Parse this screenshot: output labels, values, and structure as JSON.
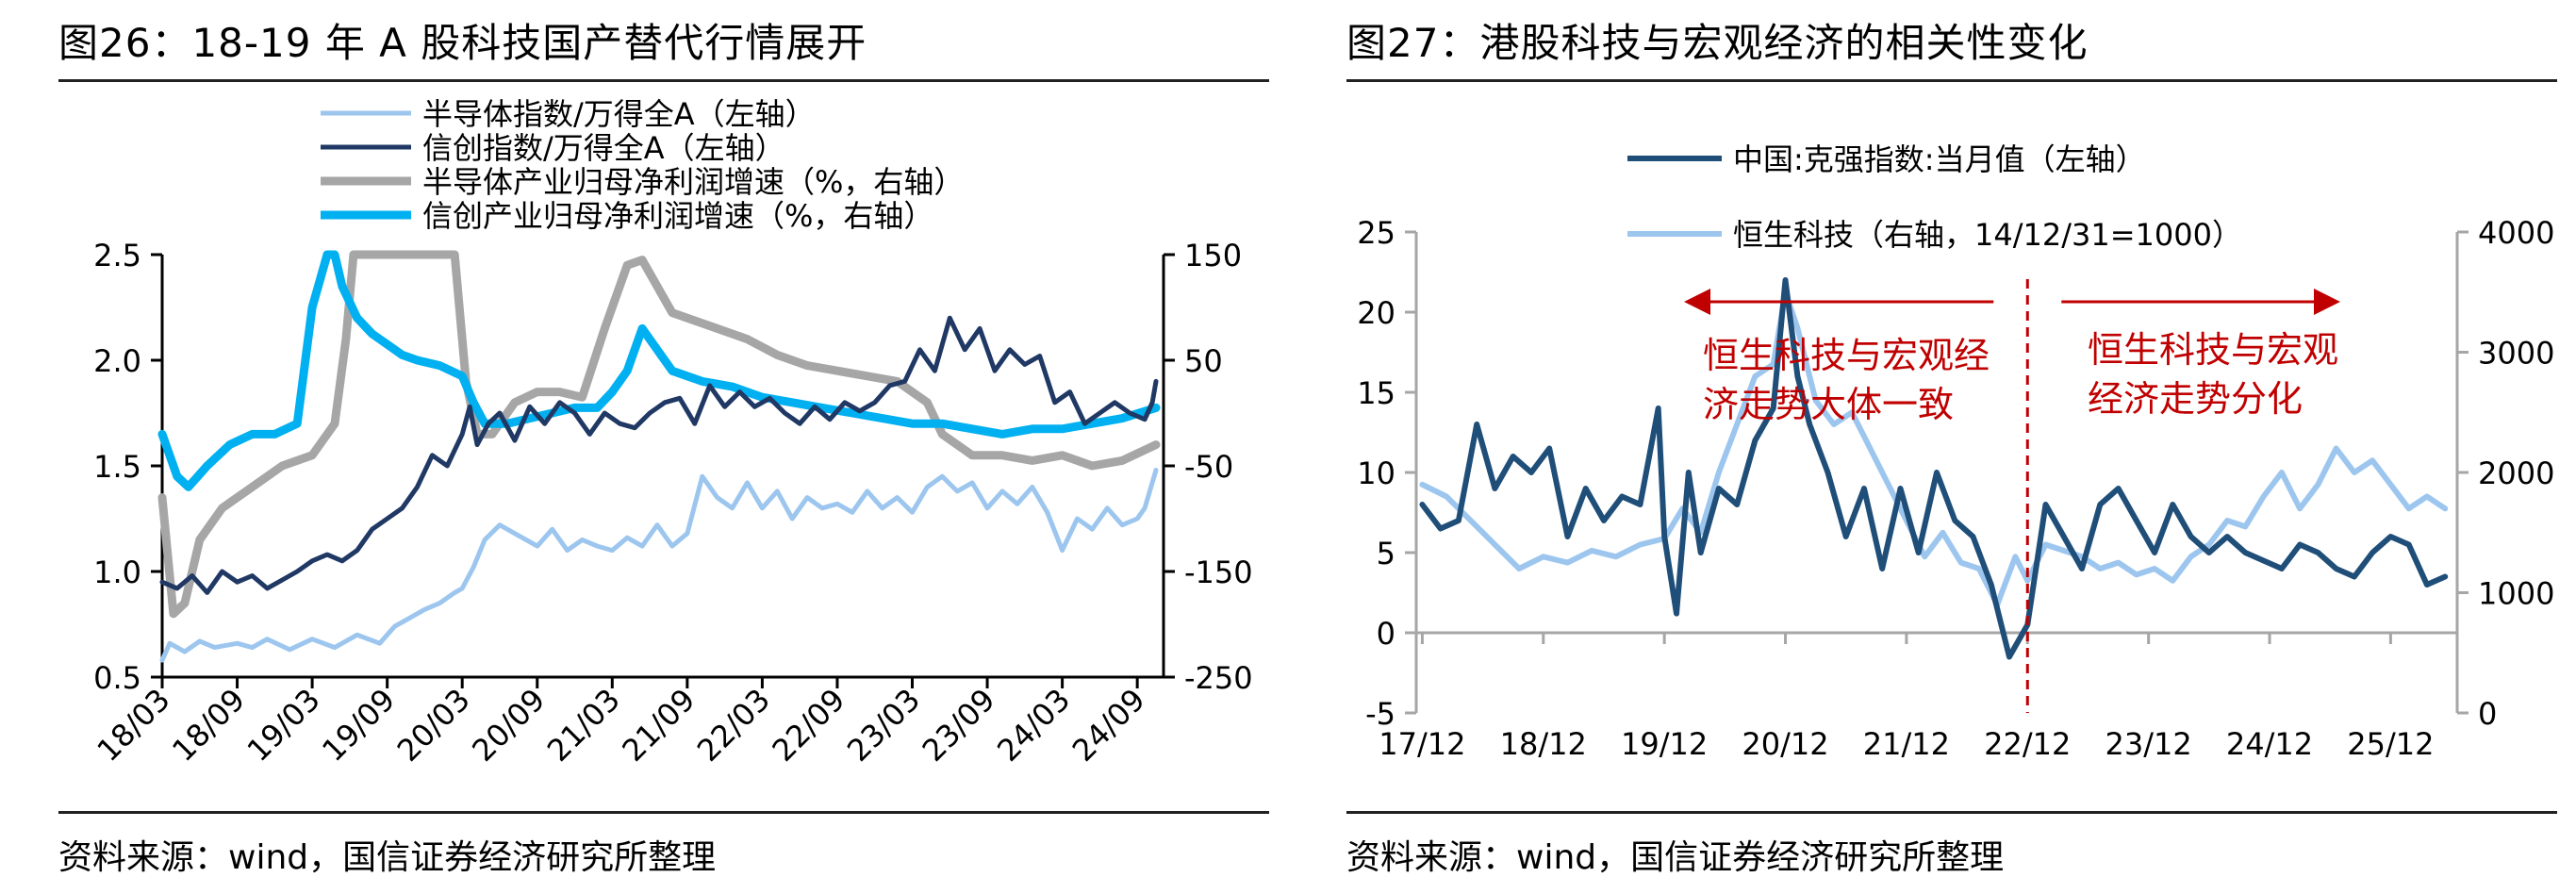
{
  "left": {
    "title": "图26：18-19 年 A 股科技国产替代行情展开",
    "source": "资料来源：wind，国信证券经济研究所整理",
    "chart_data": {
      "type": "line",
      "x_ticks": [
        "18/03",
        "18/09",
        "19/03",
        "19/09",
        "20/03",
        "20/09",
        "21/03",
        "21/09",
        "22/03",
        "22/09",
        "23/03",
        "23/09",
        "24/03",
        "24/09"
      ],
      "y_left": {
        "min": 0.5,
        "max": 2.5,
        "ticks": [
          "2.5",
          "2.0",
          "1.5",
          "1.0",
          "0.5"
        ]
      },
      "y_right": {
        "min": -250,
        "max": 150,
        "ticks": [
          "150",
          "50",
          "-50",
          "-150",
          "-250"
        ]
      },
      "series": [
        {
          "name": "半导体指数/万得全A（左轴）",
          "color": "#9dc6ef",
          "axis": "left",
          "width": 5,
          "x": [
            0,
            0.1,
            0.3,
            0.5,
            0.7,
            1,
            1.2,
            1.4,
            1.7,
            2,
            2.3,
            2.6,
            2.9,
            3.1,
            3.3,
            3.5,
            3.7,
            3.9,
            4,
            4.15,
            4.3,
            4.5,
            4.7,
            5,
            5.2,
            5.4,
            5.6,
            5.8,
            6,
            6.2,
            6.4,
            6.6,
            6.8,
            7,
            7.2,
            7.4,
            7.6,
            7.8,
            8,
            8.2,
            8.4,
            8.6,
            8.8,
            9,
            9.2,
            9.4,
            9.6,
            9.8,
            10,
            10.2,
            10.4,
            10.6,
            10.8,
            11,
            11.2,
            11.4,
            11.6,
            11.8,
            12,
            12.2,
            12.4,
            12.6,
            12.8,
            13,
            13.1,
            13.25
          ],
          "y": [
            0.58,
            0.66,
            0.62,
            0.67,
            0.64,
            0.66,
            0.64,
            0.68,
            0.63,
            0.68,
            0.64,
            0.7,
            0.66,
            0.74,
            0.78,
            0.82,
            0.85,
            0.9,
            0.92,
            1.02,
            1.15,
            1.22,
            1.18,
            1.12,
            1.2,
            1.1,
            1.15,
            1.12,
            1.1,
            1.16,
            1.12,
            1.22,
            1.12,
            1.18,
            1.45,
            1.35,
            1.3,
            1.42,
            1.3,
            1.38,
            1.25,
            1.35,
            1.3,
            1.32,
            1.28,
            1.38,
            1.3,
            1.35,
            1.28,
            1.4,
            1.45,
            1.38,
            1.42,
            1.3,
            1.38,
            1.32,
            1.4,
            1.28,
            1.1,
            1.25,
            1.2,
            1.3,
            1.22,
            1.25,
            1.3,
            1.48
          ]
        },
        {
          "name": "信创指数/万得全A（左轴）",
          "color": "#203864",
          "axis": "left",
          "width": 5,
          "x": [
            0,
            0.2,
            0.4,
            0.6,
            0.8,
            1,
            1.2,
            1.4,
            1.6,
            1.8,
            2,
            2.2,
            2.4,
            2.6,
            2.8,
            3,
            3.2,
            3.4,
            3.6,
            3.8,
            4,
            4.1,
            4.2,
            4.35,
            4.5,
            4.7,
            4.9,
            5.1,
            5.3,
            5.5,
            5.7,
            5.9,
            6.1,
            6.3,
            6.5,
            6.7,
            6.9,
            7.1,
            7.3,
            7.5,
            7.7,
            7.9,
            8.1,
            8.3,
            8.5,
            8.7,
            8.9,
            9.1,
            9.3,
            9.5,
            9.7,
            9.9,
            10.1,
            10.3,
            10.5,
            10.7,
            10.9,
            11.1,
            11.3,
            11.5,
            11.7,
            11.9,
            12.1,
            12.3,
            12.5,
            12.7,
            12.9,
            13.1,
            13.2,
            13.25
          ],
          "y": [
            0.95,
            0.92,
            0.98,
            0.9,
            1.0,
            0.95,
            0.98,
            0.92,
            0.96,
            1.0,
            1.05,
            1.08,
            1.05,
            1.1,
            1.2,
            1.25,
            1.3,
            1.4,
            1.55,
            1.5,
            1.65,
            1.78,
            1.6,
            1.7,
            1.75,
            1.62,
            1.78,
            1.7,
            1.8,
            1.75,
            1.65,
            1.75,
            1.7,
            1.68,
            1.75,
            1.8,
            1.82,
            1.7,
            1.88,
            1.78,
            1.85,
            1.78,
            1.82,
            1.75,
            1.7,
            1.78,
            1.72,
            1.8,
            1.76,
            1.8,
            1.88,
            1.9,
            2.05,
            1.95,
            2.2,
            2.05,
            2.15,
            1.95,
            2.05,
            1.98,
            2.02,
            1.8,
            1.85,
            1.7,
            1.75,
            1.8,
            1.75,
            1.72,
            1.8,
            1.9
          ]
        },
        {
          "name": "半导体产业归母净利润增速（%，右轴）",
          "color": "#a6a6a6",
          "axis": "right",
          "width": 9,
          "x": [
            0,
            0.15,
            0.3,
            0.5,
            0.8,
            1.2,
            1.6,
            2.0,
            2.3,
            2.45,
            2.55,
            2.8,
            3.2,
            3.6,
            3.9,
            4.05,
            4.2,
            4.4,
            4.7,
            5.0,
            5.3,
            5.6,
            5.9,
            6.2,
            6.4,
            6.6,
            6.8,
            7.0,
            7.4,
            7.8,
            8.2,
            8.6,
            9.0,
            9.4,
            9.8,
            10.2,
            10.4,
            10.8,
            11.2,
            11.6,
            12.0,
            12.4,
            12.8,
            13.25
          ],
          "y": [
            -80,
            -190,
            -180,
            -120,
            -90,
            -70,
            -50,
            -40,
            -10,
            70,
            150,
            150,
            150,
            150,
            150,
            30,
            -20,
            -20,
            10,
            20,
            20,
            15,
            80,
            140,
            145,
            120,
            95,
            90,
            80,
            70,
            55,
            45,
            40,
            35,
            30,
            10,
            -20,
            -40,
            -40,
            -45,
            -40,
            -50,
            -45,
            -30
          ]
        },
        {
          "name": "信创产业归母净利润增速（%，右轴）",
          "color": "#00b0f0",
          "axis": "right",
          "width": 9,
          "x": [
            0,
            0.2,
            0.35,
            0.6,
            0.9,
            1.2,
            1.5,
            1.8,
            2.0,
            2.2,
            2.3,
            2.4,
            2.6,
            2.8,
            3.0,
            3.2,
            3.4,
            3.7,
            4.0,
            4.15,
            4.3,
            4.6,
            4.9,
            5.2,
            5.5,
            5.8,
            6.0,
            6.2,
            6.4,
            6.6,
            6.8,
            7.2,
            7.6,
            8.0,
            8.4,
            8.8,
            9.2,
            9.6,
            10.0,
            10.4,
            10.8,
            11.2,
            11.6,
            12.0,
            12.4,
            12.8,
            13.25
          ],
          "y": [
            -20,
            -60,
            -70,
            -50,
            -30,
            -20,
            -20,
            -10,
            100,
            150,
            150,
            120,
            90,
            75,
            65,
            55,
            50,
            45,
            35,
            10,
            -10,
            -10,
            -5,
            0,
            5,
            5,
            20,
            40,
            80,
            60,
            40,
            30,
            25,
            15,
            10,
            5,
            0,
            -5,
            -10,
            -10,
            -15,
            -20,
            -15,
            -15,
            -10,
            -5,
            5
          ]
        }
      ]
    }
  },
  "right": {
    "title": "图27：港股科技与宏观经济的相关性变化",
    "source": "资料来源：wind，国信证券经济研究所整理",
    "annotation_left": [
      "恒生科技与宏观经",
      "济走势大体一致"
    ],
    "annotation_right": [
      "恒生科技与宏观",
      "经济走势分化"
    ],
    "chart_data": {
      "type": "line",
      "x_ticks": [
        "17/12",
        "18/12",
        "19/12",
        "20/12",
        "21/12",
        "22/12",
        "23/12",
        "24/12",
        "25/12"
      ],
      "y_left": {
        "min": -5,
        "max": 25,
        "ticks": [
          "25",
          "20",
          "15",
          "10",
          "5",
          "0",
          "-5"
        ]
      },
      "y_right": {
        "min": 0,
        "max": 4000,
        "ticks": [
          "4000",
          "3000",
          "2000",
          "1000",
          "0"
        ]
      },
      "series": [
        {
          "name": "中国:克强指数:当月值（左轴）",
          "color": "#1f4e79",
          "axis": "left",
          "width": 6,
          "x": [
            0,
            0.15,
            0.3,
            0.45,
            0.6,
            0.75,
            0.9,
            1.05,
            1.2,
            1.35,
            1.5,
            1.65,
            1.8,
            1.95,
            2.0,
            2.1,
            2.2,
            2.3,
            2.45,
            2.6,
            2.75,
            2.9,
            3.0,
            3.1,
            3.2,
            3.35,
            3.5,
            3.65,
            3.8,
            3.95,
            4.1,
            4.25,
            4.4,
            4.55,
            4.7,
            4.85,
            5.0,
            5.15,
            5.3,
            5.45,
            5.6,
            5.75,
            5.9,
            6.05,
            6.2,
            6.35,
            6.5,
            6.65,
            6.8,
            6.95,
            7.1,
            7.25,
            7.4,
            7.55,
            7.7,
            7.85,
            8.0,
            8.15,
            8.3,
            8.45
          ],
          "y": [
            8,
            6.5,
            7,
            13,
            9,
            11,
            10,
            11.5,
            6,
            9,
            7,
            8.5,
            8,
            14,
            6,
            1.2,
            10,
            5,
            9,
            8,
            12,
            14,
            22,
            16,
            13,
            10,
            6,
            9,
            4,
            9,
            5,
            10,
            7,
            6,
            3,
            -1.5,
            0.5,
            8,
            6,
            4,
            8,
            9,
            7,
            5,
            8,
            6,
            5,
            6,
            5,
            4.5,
            4,
            5.5,
            5,
            4,
            3.5,
            5,
            6,
            5.5,
            3,
            3.5
          ]
        },
        {
          "name": "恒生科技（右轴，14/12/31=1000）",
          "color": "#9dc6ef",
          "axis": "right",
          "width": 6,
          "x": [
            0,
            0.2,
            0.4,
            0.6,
            0.8,
            1.0,
            1.2,
            1.4,
            1.6,
            1.8,
            2.0,
            2.15,
            2.3,
            2.45,
            2.6,
            2.75,
            2.9,
            3.0,
            3.1,
            3.25,
            3.4,
            3.55,
            3.7,
            3.85,
            4.0,
            4.15,
            4.3,
            4.45,
            4.6,
            4.75,
            4.9,
            5.0,
            5.15,
            5.3,
            5.45,
            5.6,
            5.75,
            5.9,
            6.05,
            6.2,
            6.35,
            6.5,
            6.65,
            6.8,
            6.95,
            7.1,
            7.25,
            7.4,
            7.55,
            7.7,
            7.85,
            8.0,
            8.15,
            8.3,
            8.45
          ],
          "y": [
            1900,
            1800,
            1600,
            1400,
            1200,
            1300,
            1250,
            1350,
            1300,
            1400,
            1450,
            1700,
            1500,
            2000,
            2400,
            2800,
            2900,
            3500,
            3200,
            2600,
            2400,
            2500,
            2200,
            1900,
            1600,
            1300,
            1500,
            1250,
            1200,
            900,
            1300,
            1100,
            1400,
            1350,
            1300,
            1200,
            1250,
            1150,
            1200,
            1100,
            1300,
            1400,
            1600,
            1550,
            1800,
            2000,
            1700,
            1900,
            2200,
            2000,
            2100,
            1900,
            1700,
            1800,
            1700
          ]
        }
      ]
    }
  }
}
